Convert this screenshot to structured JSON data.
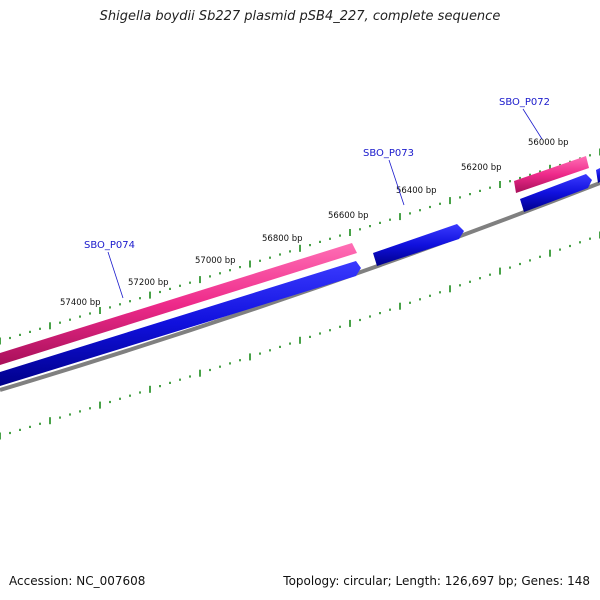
{
  "title": "Shigella boydii Sb227 plasmid pSB4_227, complete sequence",
  "footer": {
    "accession": "Accession: NC_007608",
    "summary": "Topology: circular; Length: 126,697 bp; Genes: 148"
  },
  "scale_labels": [
    "57400 bp",
    "57200 bp",
    "57000 bp",
    "56800 bp",
    "56600 bp",
    "56400 bp",
    "56200 bp",
    "56000 bp"
  ],
  "genes": [
    {
      "name": "SBO_P074"
    },
    {
      "name": "SBO_P073"
    },
    {
      "name": "SBO_P072"
    }
  ],
  "colors": {
    "pink_feature": "#ee2a8a",
    "blue_feature": "#1010dd",
    "backbone": "#808080",
    "tick": "#1a8a1a",
    "gene_label": "#1a1acc"
  }
}
